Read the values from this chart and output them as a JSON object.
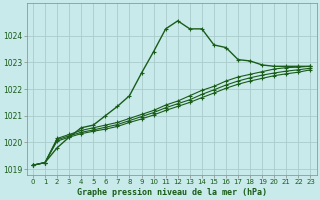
{
  "title": "Graphe pression niveau de la mer (hPa)",
  "bg_color": "#c8eaea",
  "grid_color": "#aacccc",
  "line_color": "#1a5c1a",
  "xlim": [
    -0.5,
    23.5
  ],
  "ylim": [
    1018.8,
    1025.2
  ],
  "xticks": [
    0,
    1,
    2,
    3,
    4,
    5,
    6,
    7,
    8,
    9,
    10,
    11,
    12,
    13,
    14,
    15,
    16,
    17,
    18,
    19,
    20,
    21,
    22,
    23
  ],
  "ytick_positions": [
    1019,
    1020,
    1021,
    1022,
    1023,
    1024
  ],
  "ytick_labels": [
    "1019",
    "1020",
    "1021",
    "1022",
    "1023",
    "1024"
  ],
  "series": [
    {
      "x": [
        0,
        1,
        2,
        3,
        4,
        5,
        6,
        7,
        8,
        9,
        10,
        11,
        12,
        13,
        14,
        15,
        16,
        17,
        18,
        19,
        20,
        21,
        22,
        23
      ],
      "y": [
        1019.15,
        1019.25,
        1019.8,
        1020.2,
        1020.55,
        1020.65,
        1021.0,
        1021.35,
        1021.75,
        1022.6,
        1023.4,
        1024.25,
        1024.55,
        1024.25,
        1024.25,
        1023.65,
        1023.55,
        1023.1,
        1023.05,
        1022.9,
        1022.85,
        1022.85,
        1022.85,
        1022.85
      ],
      "marker": "+",
      "linewidth": 1.0
    },
    {
      "x": [
        0,
        1,
        2,
        3,
        4,
        5,
        6,
        7,
        8,
        9,
        10,
        11,
        12,
        13,
        14,
        15,
        16,
        17,
        18,
        19,
        20,
        21,
        22,
        23
      ],
      "y": [
        1019.15,
        1019.25,
        1020.15,
        1020.3,
        1020.45,
        1020.55,
        1020.65,
        1020.75,
        1020.9,
        1021.05,
        1021.2,
        1021.4,
        1021.55,
        1021.75,
        1021.95,
        1022.1,
        1022.3,
        1022.45,
        1022.55,
        1022.65,
        1022.75,
        1022.8,
        1022.82,
        1022.85
      ],
      "marker": "+",
      "linewidth": 0.8
    },
    {
      "x": [
        0,
        1,
        2,
        3,
        4,
        5,
        6,
        7,
        8,
        9,
        10,
        11,
        12,
        13,
        14,
        15,
        16,
        17,
        18,
        19,
        20,
        21,
        22,
        23
      ],
      "y": [
        1019.15,
        1019.25,
        1020.1,
        1020.25,
        1020.38,
        1020.47,
        1020.57,
        1020.67,
        1020.82,
        1020.97,
        1021.12,
        1021.3,
        1021.45,
        1021.6,
        1021.8,
        1021.97,
        1022.15,
        1022.3,
        1022.42,
        1022.52,
        1022.6,
        1022.67,
        1022.72,
        1022.78
      ],
      "marker": "+",
      "linewidth": 0.8
    },
    {
      "x": [
        0,
        1,
        2,
        3,
        4,
        5,
        6,
        7,
        8,
        9,
        10,
        11,
        12,
        13,
        14,
        15,
        16,
        17,
        18,
        19,
        20,
        21,
        22,
        23
      ],
      "y": [
        1019.15,
        1019.25,
        1020.05,
        1020.2,
        1020.33,
        1020.42,
        1020.5,
        1020.6,
        1020.75,
        1020.88,
        1021.03,
        1021.2,
        1021.35,
        1021.5,
        1021.68,
        1021.85,
        1022.03,
        1022.18,
        1022.3,
        1022.4,
        1022.5,
        1022.57,
        1022.63,
        1022.72
      ],
      "marker": "+",
      "linewidth": 0.8
    }
  ]
}
